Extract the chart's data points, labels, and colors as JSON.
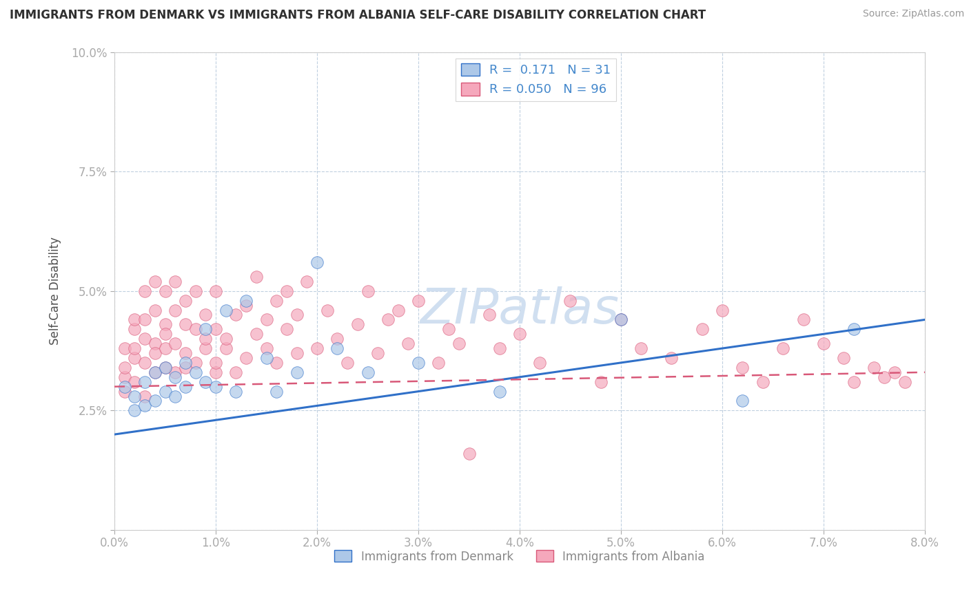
{
  "title": "IMMIGRANTS FROM DENMARK VS IMMIGRANTS FROM ALBANIA SELF-CARE DISABILITY CORRELATION CHART",
  "source": "Source: ZipAtlas.com",
  "xlabel_denmark": "Immigrants from Denmark",
  "xlabel_albania": "Immigrants from Albania",
  "ylabel": "Self-Care Disability",
  "xlim": [
    0.0,
    0.08
  ],
  "ylim": [
    0.0,
    0.1
  ],
  "xticks": [
    0.0,
    0.01,
    0.02,
    0.03,
    0.04,
    0.05,
    0.06,
    0.07,
    0.08
  ],
  "yticks": [
    0.0,
    0.025,
    0.05,
    0.075,
    0.1
  ],
  "ytick_labels": [
    "",
    "2.5%",
    "5.0%",
    "7.5%",
    "10.0%"
  ],
  "xtick_labels": [
    "0.0%",
    "1.0%",
    "2.0%",
    "3.0%",
    "4.0%",
    "5.0%",
    "6.0%",
    "7.0%",
    "8.0%"
  ],
  "denmark_R": 0.171,
  "denmark_N": 31,
  "albania_R": 0.05,
  "albania_N": 96,
  "denmark_color": "#adc8e8",
  "albania_color": "#f5a8bc",
  "denmark_line_color": "#3070c8",
  "albania_line_color": "#d85878",
  "background_color": "#ffffff",
  "grid_color": "#c0d0e0",
  "title_color": "#303030",
  "axis_color": "#4488cc",
  "watermark_color": "#d0dff0",
  "denmark_x": [
    0.001,
    0.002,
    0.002,
    0.003,
    0.003,
    0.004,
    0.004,
    0.005,
    0.005,
    0.006,
    0.006,
    0.007,
    0.007,
    0.008,
    0.009,
    0.009,
    0.01,
    0.011,
    0.012,
    0.013,
    0.015,
    0.016,
    0.018,
    0.02,
    0.022,
    0.025,
    0.03,
    0.038,
    0.05,
    0.062,
    0.073
  ],
  "denmark_y": [
    0.03,
    0.028,
    0.025,
    0.031,
    0.026,
    0.033,
    0.027,
    0.034,
    0.029,
    0.032,
    0.028,
    0.035,
    0.03,
    0.033,
    0.031,
    0.042,
    0.03,
    0.046,
    0.029,
    0.048,
    0.036,
    0.029,
    0.033,
    0.056,
    0.038,
    0.033,
    0.035,
    0.029,
    0.044,
    0.027,
    0.042
  ],
  "albania_x": [
    0.001,
    0.001,
    0.001,
    0.001,
    0.002,
    0.002,
    0.002,
    0.002,
    0.002,
    0.003,
    0.003,
    0.003,
    0.003,
    0.003,
    0.004,
    0.004,
    0.004,
    0.004,
    0.004,
    0.005,
    0.005,
    0.005,
    0.005,
    0.005,
    0.006,
    0.006,
    0.006,
    0.006,
    0.007,
    0.007,
    0.007,
    0.007,
    0.008,
    0.008,
    0.008,
    0.009,
    0.009,
    0.009,
    0.01,
    0.01,
    0.01,
    0.01,
    0.011,
    0.011,
    0.012,
    0.012,
    0.013,
    0.013,
    0.014,
    0.014,
    0.015,
    0.015,
    0.016,
    0.016,
    0.017,
    0.017,
    0.018,
    0.018,
    0.019,
    0.02,
    0.021,
    0.022,
    0.023,
    0.024,
    0.025,
    0.026,
    0.027,
    0.028,
    0.029,
    0.03,
    0.032,
    0.033,
    0.034,
    0.035,
    0.037,
    0.038,
    0.04,
    0.042,
    0.045,
    0.048,
    0.05,
    0.052,
    0.055,
    0.058,
    0.06,
    0.062,
    0.064,
    0.066,
    0.068,
    0.07,
    0.072,
    0.073,
    0.075,
    0.076,
    0.077,
    0.078
  ],
  "albania_y": [
    0.032,
    0.038,
    0.034,
    0.029,
    0.036,
    0.042,
    0.031,
    0.038,
    0.044,
    0.035,
    0.04,
    0.028,
    0.044,
    0.05,
    0.033,
    0.046,
    0.039,
    0.052,
    0.037,
    0.043,
    0.034,
    0.05,
    0.041,
    0.038,
    0.033,
    0.046,
    0.039,
    0.052,
    0.037,
    0.043,
    0.034,
    0.048,
    0.042,
    0.035,
    0.05,
    0.038,
    0.04,
    0.045,
    0.033,
    0.042,
    0.035,
    0.05,
    0.038,
    0.04,
    0.045,
    0.033,
    0.047,
    0.036,
    0.053,
    0.041,
    0.038,
    0.044,
    0.048,
    0.035,
    0.042,
    0.05,
    0.037,
    0.045,
    0.052,
    0.038,
    0.046,
    0.04,
    0.035,
    0.043,
    0.05,
    0.037,
    0.044,
    0.046,
    0.039,
    0.048,
    0.035,
    0.042,
    0.039,
    0.016,
    0.045,
    0.038,
    0.041,
    0.035,
    0.048,
    0.031,
    0.044,
    0.038,
    0.036,
    0.042,
    0.046,
    0.034,
    0.031,
    0.038,
    0.044,
    0.039,
    0.036,
    0.031,
    0.034,
    0.032,
    0.033,
    0.031
  ],
  "denmark_trend_x0": 0.0,
  "denmark_trend_x1": 0.08,
  "denmark_trend_y0": 0.02,
  "denmark_trend_y1": 0.044,
  "albania_trend_x0": 0.0,
  "albania_trend_x1": 0.08,
  "albania_trend_y0": 0.03,
  "albania_trend_y1": 0.033
}
